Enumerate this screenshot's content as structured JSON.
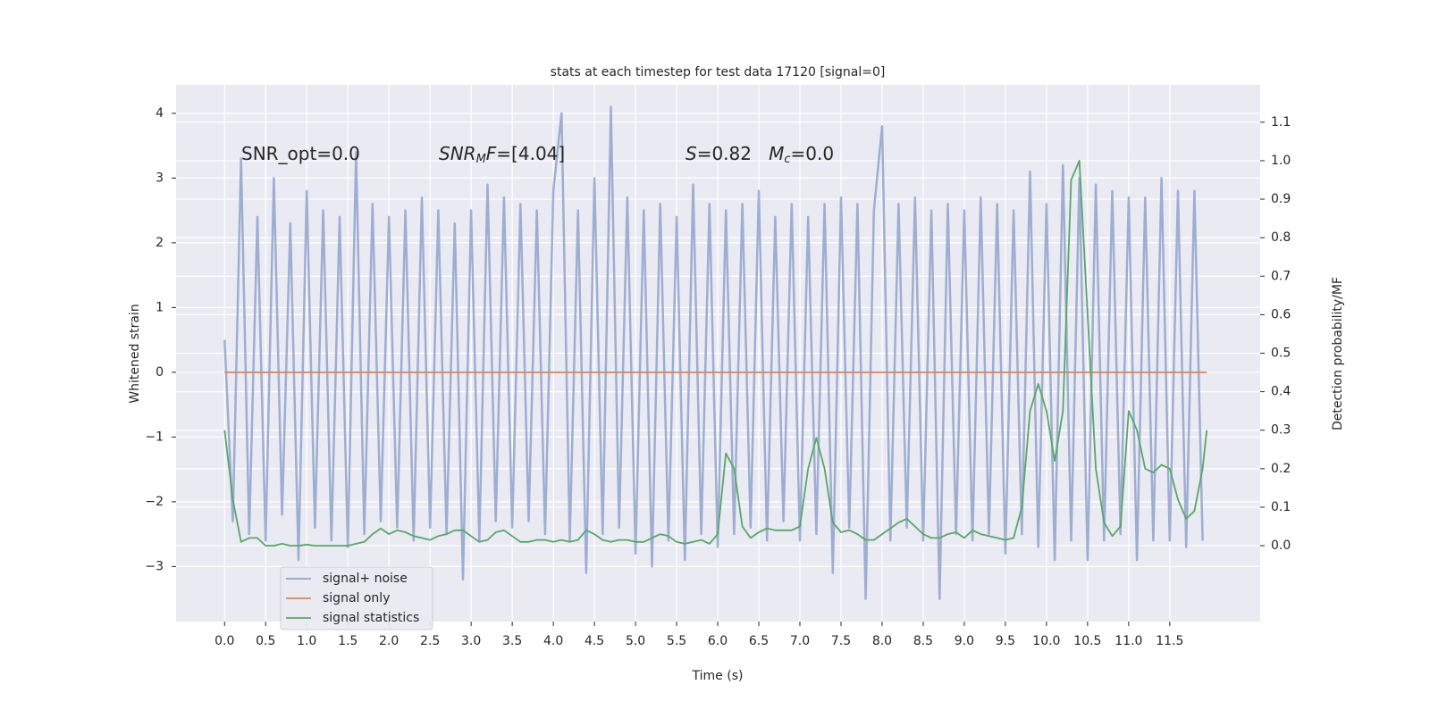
{
  "chart_data": {
    "type": "line",
    "title": "stats at each timestep for test data 17120 [signal=0]",
    "xlabel": "Time (s)",
    "ylabel": "Whitened strain",
    "y2label": "Detection probability/MF",
    "xlim": [
      -0.59,
      12.6
    ],
    "ylim": [
      -3.85,
      4.44
    ],
    "y2lim": [
      -0.197,
      1.197
    ],
    "xticks": [
      {
        "value": 0,
        "label": "0.0"
      },
      0.5,
      {
        "value": 1,
        "label": "1.0"
      },
      1.5,
      {
        "value": 2,
        "label": "2.0"
      },
      2.5,
      {
        "value": 3,
        "label": "3.0"
      },
      3.5,
      {
        "value": 4,
        "label": "4.0"
      },
      4.5,
      {
        "value": 5,
        "label": "5.0"
      },
      5.5,
      {
        "value": 6,
        "label": "6.0"
      },
      6.5,
      {
        "value": 7,
        "label": "7.0"
      },
      7.5,
      {
        "value": 8,
        "label": "8.0"
      },
      8.5,
      {
        "value": 9,
        "label": "9.0"
      },
      9.5,
      {
        "value": 10,
        "label": "10.0"
      },
      10.5,
      {
        "value": 11,
        "label": "11.0"
      },
      11.5
    ],
    "yticks": [
      {
        "value": -3,
        "label": "−3"
      },
      {
        "value": -2,
        "label": "−2"
      },
      {
        "value": -1,
        "label": "−1"
      },
      0,
      1,
      2,
      3,
      4
    ],
    "y2ticks": [
      {
        "value": 0,
        "label": "0.0"
      },
      0.1,
      0.2,
      0.3,
      0.4,
      0.5,
      0.6,
      0.7,
      0.8,
      0.9,
      {
        "value": 1,
        "label": "1.0"
      },
      1.1
    ],
    "grid": true,
    "legend": "lower left",
    "annotations": [
      [
        {
          "text": "SNR_opt=0.0",
          "style": "normal"
        }
      ],
      [
        {
          "text": "SNR",
          "style": "italic"
        },
        {
          "text": "M",
          "style": "sub"
        },
        {
          "text": "F",
          "style": "italic"
        },
        {
          "text": "=[4.04]",
          "style": "normal"
        }
      ],
      [
        {
          "text": "S",
          "style": "italic"
        },
        {
          "text": "=0.82   ",
          "style": "normal"
        },
        {
          "text": "M",
          "style": "italic"
        },
        {
          "text": "c",
          "style": "sub"
        },
        {
          "text": "=0.0",
          "style": "normal"
        }
      ]
    ],
    "series": [
      {
        "name": "signal+ noise",
        "color": "#8fa3cc",
        "x": [
          0.0,
          0.1,
          0.2,
          0.3,
          0.4,
          0.5,
          0.6,
          0.7,
          0.8,
          0.9,
          1.0,
          1.1,
          1.2,
          1.3,
          1.4,
          1.5,
          1.6,
          1.7,
          1.8,
          1.9,
          2.0,
          2.1,
          2.2,
          2.3,
          2.4,
          2.5,
          2.6,
          2.7,
          2.8,
          2.9,
          3.0,
          3.1,
          3.2,
          3.3,
          3.4,
          3.5,
          3.6,
          3.7,
          3.8,
          3.9,
          4.0,
          4.1,
          4.2,
          4.3,
          4.4,
          4.5,
          4.6,
          4.7,
          4.8,
          4.9,
          5.0,
          5.1,
          5.2,
          5.3,
          5.4,
          5.5,
          5.6,
          5.7,
          5.8,
          5.9,
          6.0,
          6.1,
          6.2,
          6.3,
          6.4,
          6.5,
          6.6,
          6.7,
          6.8,
          6.9,
          7.0,
          7.1,
          7.2,
          7.3,
          7.4,
          7.5,
          7.6,
          7.7,
          7.8,
          7.9,
          8.0,
          8.1,
          8.2,
          8.3,
          8.4,
          8.5,
          8.6,
          8.7,
          8.8,
          8.9,
          9.0,
          9.1,
          9.2,
          9.3,
          9.4,
          9.5,
          9.6,
          9.7,
          9.8,
          9.9,
          10.0,
          10.1,
          10.2,
          10.3,
          10.4,
          10.5,
          10.6,
          10.7,
          10.8,
          10.9,
          11.0,
          11.1,
          11.2,
          11.3,
          11.4,
          11.5,
          11.6,
          11.7,
          11.8,
          11.9
        ],
        "values": [
          0.5,
          -2.3,
          3.3,
          -2.5,
          2.4,
          -2.6,
          3.0,
          -2.2,
          2.3,
          -2.9,
          2.8,
          -2.4,
          2.5,
          -2.6,
          2.4,
          -2.7,
          3.4,
          -2.5,
          2.6,
          -2.3,
          2.4,
          -2.4,
          2.5,
          -2.6,
          2.7,
          -2.4,
          2.5,
          -2.5,
          2.3,
          -3.2,
          2.5,
          -2.6,
          2.9,
          -2.3,
          2.7,
          -2.4,
          2.6,
          -2.3,
          2.5,
          -2.5,
          2.8,
          4.0,
          -2.6,
          2.5,
          -3.1,
          3.0,
          -2.5,
          4.1,
          -2.4,
          2.7,
          -2.8,
          2.5,
          -3.0,
          2.6,
          -2.6,
          2.4,
          -2.9,
          2.9,
          -2.5,
          2.6,
          -2.7,
          2.5,
          -2.5,
          2.6,
          -2.4,
          2.8,
          -2.6,
          2.4,
          -2.3,
          2.6,
          -2.6,
          2.4,
          -2.5,
          2.6,
          -3.1,
          2.7,
          -2.4,
          2.6,
          -3.5,
          2.5,
          3.8,
          -2.6,
          2.6,
          -2.4,
          2.7,
          -2.6,
          2.5,
          -3.5,
          2.6,
          -2.5,
          2.5,
          -2.6,
          2.7,
          -2.5,
          2.6,
          -2.8,
          2.5,
          -2.5,
          3.1,
          -2.7,
          2.6,
          -2.9,
          3.2,
          -2.6,
          3.0,
          -2.9,
          2.9,
          -2.6,
          2.8,
          -2.5,
          2.7,
          -2.9,
          2.7,
          -2.6,
          3.0,
          -2.6,
          2.8,
          -2.7,
          2.8,
          -2.6
        ]
      },
      {
        "name": "signal only",
        "color": "#dd8452",
        "x": [
          0.0,
          11.95
        ],
        "values": [
          0,
          0
        ]
      },
      {
        "name": "signal statistics",
        "color": "#55a868",
        "axis": "y2",
        "x": [
          0.0,
          0.1,
          0.2,
          0.3,
          0.4,
          0.5,
          0.6,
          0.7,
          0.8,
          0.9,
          1.0,
          1.1,
          1.2,
          1.3,
          1.4,
          1.5,
          1.6,
          1.7,
          1.8,
          1.9,
          2.0,
          2.1,
          2.2,
          2.3,
          2.4,
          2.5,
          2.6,
          2.7,
          2.8,
          2.9,
          3.0,
          3.1,
          3.2,
          3.3,
          3.4,
          3.5,
          3.6,
          3.7,
          3.8,
          3.9,
          4.0,
          4.1,
          4.2,
          4.3,
          4.4,
          4.5,
          4.6,
          4.7,
          4.8,
          4.9,
          5.0,
          5.1,
          5.2,
          5.3,
          5.4,
          5.5,
          5.6,
          5.7,
          5.8,
          5.9,
          6.0,
          6.1,
          6.2,
          6.3,
          6.4,
          6.5,
          6.6,
          6.7,
          6.8,
          6.9,
          7.0,
          7.1,
          7.2,
          7.3,
          7.4,
          7.5,
          7.6,
          7.7,
          7.8,
          7.9,
          8.0,
          8.1,
          8.2,
          8.3,
          8.4,
          8.5,
          8.6,
          8.7,
          8.8,
          8.9,
          9.0,
          9.1,
          9.2,
          9.3,
          9.4,
          9.5,
          9.6,
          9.7,
          9.8,
          9.9,
          10.0,
          10.1,
          10.2,
          10.3,
          10.4,
          10.5,
          10.6,
          10.7,
          10.8,
          10.9,
          11.0,
          11.1,
          11.2,
          11.3,
          11.4,
          11.5,
          11.6,
          11.7,
          11.8,
          11.9,
          11.95
        ],
        "values": [
          0.3,
          0.12,
          0.01,
          0.02,
          0.02,
          0.0,
          0.0,
          0.005,
          0.0,
          0.0,
          0.003,
          0.0,
          0.0,
          0.0,
          0.0,
          0.0,
          0.005,
          0.01,
          0.03,
          0.045,
          0.03,
          0.04,
          0.035,
          0.025,
          0.02,
          0.015,
          0.025,
          0.03,
          0.04,
          0.04,
          0.025,
          0.01,
          0.015,
          0.035,
          0.04,
          0.025,
          0.01,
          0.01,
          0.015,
          0.015,
          0.01,
          0.015,
          0.01,
          0.015,
          0.04,
          0.03,
          0.015,
          0.01,
          0.015,
          0.015,
          0.01,
          0.01,
          0.02,
          0.03,
          0.025,
          0.01,
          0.005,
          0.01,
          0.015,
          0.005,
          0.03,
          0.24,
          0.2,
          0.05,
          0.02,
          0.035,
          0.045,
          0.04,
          0.04,
          0.04,
          0.05,
          0.2,
          0.28,
          0.2,
          0.06,
          0.035,
          0.04,
          0.03,
          0.015,
          0.015,
          0.03,
          0.045,
          0.06,
          0.07,
          0.05,
          0.03,
          0.02,
          0.02,
          0.03,
          0.035,
          0.02,
          0.04,
          0.03,
          0.025,
          0.02,
          0.015,
          0.02,
          0.1,
          0.35,
          0.42,
          0.35,
          0.22,
          0.35,
          0.95,
          1.0,
          0.6,
          0.2,
          0.06,
          0.025,
          0.05,
          0.35,
          0.3,
          0.2,
          0.19,
          0.21,
          0.2,
          0.12,
          0.07,
          0.09,
          0.2,
          0.3
        ]
      }
    ]
  }
}
